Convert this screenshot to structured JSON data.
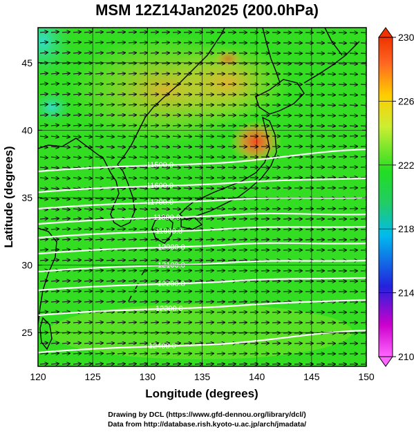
{
  "title": "MSM 12Z14Jan2025 (200.0hPa)",
  "x_axis": {
    "label": "Longitude (degrees)",
    "range": [
      120,
      150
    ],
    "ticks": [
      "120",
      "125",
      "130",
      "135",
      "140",
      "145",
      "150"
    ]
  },
  "y_axis": {
    "label": "Latitude  (degrees)",
    "range": [
      22.5,
      47.6
    ],
    "ticks": [
      "25",
      "30",
      "35",
      "40",
      "45"
    ]
  },
  "colorbar": {
    "unit_range": [
      210,
      230
    ],
    "ticks": [
      "210",
      "214",
      "218",
      "222",
      "226",
      "230"
    ],
    "colors": [
      "#ff66ff",
      "#cc00cc",
      "#2222dd",
      "#00bbee",
      "#22cc66",
      "#22dd22",
      "#ccee33",
      "#ffcc00",
      "#ff6622",
      "#ee3300"
    ]
  },
  "field": {
    "background_color": "#33dd22",
    "warm_color": "#ff6633",
    "cool_color": "#33dddd"
  },
  "contours": {
    "color": "#ffffff",
    "labels": [
      "11500.0",
      "11600.0",
      "11700.0",
      "11800.0",
      "11900.0",
      "12000.0",
      "12100.0",
      "12200.0",
      "12300.0",
      "12400.0"
    ]
  },
  "credits": {
    "line1": "Drawing by DCL (https://www.gfd-dennou.org/library/dcl/)",
    "line2": "Data from http://database.rish.kyoto-u.ac.jp/arch/jmadata/"
  }
}
